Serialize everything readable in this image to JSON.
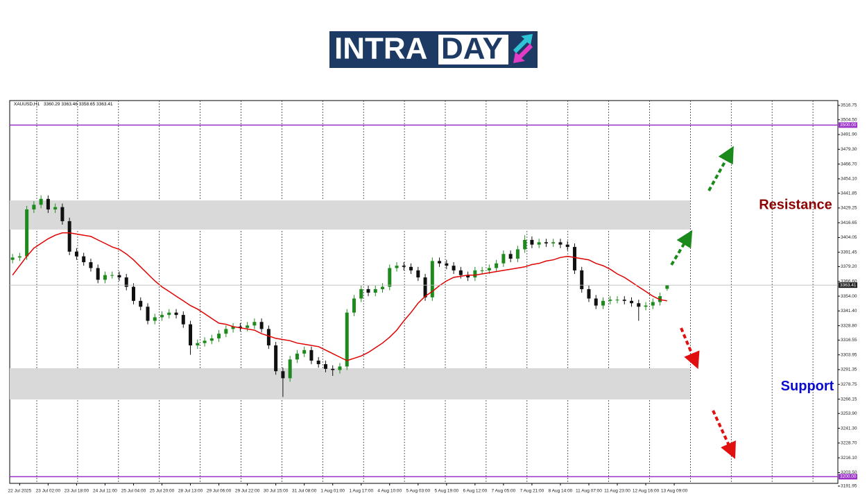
{
  "logo": {
    "first": "INTRA",
    "second": "DAY"
  },
  "chart_data": {
    "type": "candlestick",
    "symbol": "XAUUSD,H1",
    "up_color": "#1e8a1e",
    "down_color": "#111111",
    "open": [
      3385,
      3387,
      3388,
      3428,
      3432,
      3437,
      3428,
      3430,
      3418,
      3392,
      3388,
      3383,
      3378,
      3368,
      3372,
      3372,
      3370,
      3362,
      3350,
      3345,
      3333,
      3336,
      3338,
      3340,
      3338,
      3330,
      3312,
      3314,
      3316,
      3318,
      3322,
      3326,
      3328,
      3327,
      3329,
      3332,
      3326,
      3312,
      3290,
      3284,
      3300,
      3305,
      3308,
      3299,
      3296,
      3292,
      3291,
      3294,
      3340,
      3352,
      3360,
      3357,
      3360,
      3362,
      3378,
      3380,
      3379,
      3376,
      3370,
      3353,
      3384,
      3382,
      3380,
      3376,
      3372,
      3370,
      3376,
      3376,
      3378,
      3382,
      3390,
      3386,
      3394,
      3402,
      3398,
      3400,
      3399,
      3400,
      3398,
      3396,
      3376,
      3360,
      3352,
      3346,
      3350,
      3351,
      3351,
      3350,
      3348,
      3345,
      3346,
      3349,
      3360.29
    ],
    "high": [
      3390,
      3391,
      3431,
      3435,
      3440,
      3440,
      3433,
      3433,
      3421,
      3395,
      3391,
      3386,
      3381,
      3375,
      3375,
      3375,
      3373,
      3365,
      3353,
      3348,
      3339,
      3341,
      3343,
      3343,
      3341,
      3333,
      3317,
      3319,
      3321,
      3325,
      3329,
      3331,
      3331,
      3332,
      3335,
      3335,
      3329,
      3315,
      3293,
      3303,
      3308,
      3311,
      3311,
      3302,
      3299,
      3295,
      3297,
      3343,
      3355,
      3363,
      3363,
      3363,
      3365,
      3381,
      3383,
      3383,
      3382,
      3379,
      3373,
      3387,
      3387,
      3385,
      3383,
      3379,
      3375,
      3379,
      3379,
      3381,
      3385,
      3393,
      3393,
      3397,
      3406,
      3405,
      3403,
      3403,
      3403,
      3403,
      3401,
      3399,
      3379,
      3363,
      3355,
      3353,
      3354,
      3354,
      3354,
      3353,
      3351,
      3349,
      3352,
      3357,
      3363.46
    ],
    "low": [
      3382,
      3384,
      3385,
      3425,
      3429,
      3425,
      3425,
      3415,
      3389,
      3385,
      3380,
      3375,
      3365,
      3365,
      3369,
      3367,
      3359,
      3347,
      3342,
      3330,
      3330,
      3333,
      3335,
      3335,
      3327,
      3304,
      3309,
      3311,
      3313,
      3315,
      3319,
      3323,
      3324,
      3324,
      3326,
      3323,
      3309,
      3287,
      3268,
      3281,
      3297,
      3302,
      3296,
      3293,
      3289,
      3286,
      3288,
      3291,
      3337,
      3349,
      3354,
      3354,
      3357,
      3359,
      3375,
      3376,
      3373,
      3367,
      3350,
      3350,
      3379,
      3377,
      3373,
      3369,
      3367,
      3367,
      3373,
      3373,
      3375,
      3379,
      3383,
      3383,
      3391,
      3395,
      3395,
      3396,
      3396,
      3395,
      3393,
      3373,
      3357,
      3349,
      3343,
      3343,
      3347,
      3348,
      3347,
      3345,
      3333,
      3342,
      3343,
      3346,
      3358.65
    ],
    "close": [
      3387,
      3388,
      3428,
      3432,
      3437,
      3428,
      3430,
      3418,
      3392,
      3388,
      3383,
      3378,
      3368,
      3372,
      3372,
      3370,
      3362,
      3350,
      3345,
      3333,
      3336,
      3338,
      3340,
      3338,
      3330,
      3312,
      3314,
      3316,
      3318,
      3322,
      3326,
      3328,
      3327,
      3329,
      3332,
      3326,
      3312,
      3290,
      3284,
      3300,
      3305,
      3308,
      3299,
      3296,
      3292,
      3291,
      3294,
      3340,
      3352,
      3360,
      3357,
      3360,
      3362,
      3378,
      3380,
      3379,
      3376,
      3370,
      3353,
      3384,
      3382,
      3380,
      3376,
      3372,
      3370,
      3376,
      3376,
      3378,
      3382,
      3390,
      3386,
      3394,
      3402,
      3398,
      3400,
      3399,
      3400,
      3398,
      3396,
      3376,
      3360,
      3352,
      3346,
      3350,
      3351,
      3351,
      3350,
      3348,
      3345,
      3346,
      3349,
      3354,
      3363.41
    ],
    "ma": {
      "color": "#e00000",
      "values": [
        3372,
        3380,
        3388,
        3395,
        3399,
        3403,
        3406,
        3408,
        3408,
        3407,
        3406,
        3405,
        3402,
        3399,
        3396,
        3394,
        3390,
        3385,
        3379,
        3373,
        3367,
        3362,
        3358,
        3354,
        3350,
        3346,
        3343,
        3339,
        3335,
        3331,
        3330,
        3328,
        3327,
        3326,
        3325,
        3322,
        3320,
        3318,
        3317,
        3316,
        3314,
        3313,
        3312,
        3311,
        3308,
        3305,
        3302,
        3299,
        3301,
        3303,
        3306,
        3310,
        3314,
        3319,
        3325,
        3333,
        3340,
        3348,
        3354,
        3358,
        3363,
        3367,
        3370,
        3371,
        3372,
        3372,
        3373,
        3374,
        3375,
        3376,
        3377,
        3378,
        3379,
        3381,
        3382,
        3384,
        3385,
        3387,
        3388,
        3387,
        3386,
        3385,
        3382,
        3380,
        3377,
        3373,
        3370,
        3366,
        3362,
        3358,
        3354,
        3351,
        3350
      ]
    },
    "xlim": [
      -0.4,
      116
    ],
    "xticks": [
      {
        "value": 1,
        "label": "22 Jul 2025"
      },
      {
        "value": 5,
        "label": "23 Jul 02:00"
      },
      {
        "value": 9,
        "label": "23 Jul 18:00"
      },
      {
        "value": 13,
        "label": "24 Jul 11:00"
      },
      {
        "value": 17,
        "label": "25 Jul 04:00"
      },
      {
        "value": 21,
        "label": "25 Jul 20:00"
      },
      {
        "value": 25,
        "label": "28 Jul 13:00"
      },
      {
        "value": 29,
        "label": "29 Jul 06:00"
      },
      {
        "value": 33,
        "label": "29 Jul 22:00"
      },
      {
        "value": 37,
        "label": "30 Jul 15:00"
      },
      {
        "value": 41,
        "label": "31 Jul 08:00"
      },
      {
        "value": 45,
        "label": "1 Aug 01:00"
      },
      {
        "value": 49,
        "label": "1 Aug 17:00"
      },
      {
        "value": 53,
        "label": "4 Aug 10:00"
      },
      {
        "value": 57,
        "label": "5 Aug 03:00"
      },
      {
        "value": 61,
        "label": "5 Aug 19:00"
      },
      {
        "value": 65,
        "label": "6 Aug 12:00"
      },
      {
        "value": 69,
        "label": "7 Aug 05:00"
      },
      {
        "value": 73,
        "label": "7 Aug 21:00"
      },
      {
        "value": 77,
        "label": "8 Aug 14:00"
      },
      {
        "value": 81,
        "label": "11 Aug 07:00"
      },
      {
        "value": 85,
        "label": "11 Aug 23:00"
      },
      {
        "value": 89,
        "label": "12 Aug 16:00"
      },
      {
        "value": 93,
        "label": "13 Aug 09:00"
      }
    ],
    "ylim": [
      3194.3,
      3520.9
    ],
    "yticks": [
      {
        "value": 3516.75,
        "label": "3516.75"
      },
      {
        "value": 3504.5,
        "label": "3504.50"
      },
      {
        "value": 3491.9,
        "label": "3491.90"
      },
      {
        "value": 3479.3,
        "label": "3479.30"
      },
      {
        "value": 3466.7,
        "label": "3466.70"
      },
      {
        "value": 3454.1,
        "label": "3454.10"
      },
      {
        "value": 3441.85,
        "label": "3441.85"
      },
      {
        "value": 3429.25,
        "label": "3429.25"
      },
      {
        "value": 3416.65,
        "label": "3416.65"
      },
      {
        "value": 3404.05,
        "label": "3404.05"
      },
      {
        "value": 3391.45,
        "label": "3391.45"
      },
      {
        "value": 3379.2,
        "label": "3379.20"
      },
      {
        "value": 3366.6,
        "label": "3366.60"
      },
      {
        "value": 3354,
        "label": "3354.00"
      },
      {
        "value": 3341.4,
        "label": "3341.40"
      },
      {
        "value": 3328.8,
        "label": "3328.80"
      },
      {
        "value": 3316.55,
        "label": "3316.55"
      },
      {
        "value": 3303.95,
        "label": "3303.95"
      },
      {
        "value": 3291.35,
        "label": "3291.35"
      },
      {
        "value": 3278.75,
        "label": "3278.75"
      },
      {
        "value": 3266.15,
        "label": "3266.15"
      },
      {
        "value": 3253.9,
        "label": "3253.90"
      },
      {
        "value": 3241.3,
        "label": "3241.30"
      },
      {
        "value": 3228.7,
        "label": "3228.70"
      },
      {
        "value": 3216.1,
        "label": "3216.10"
      },
      {
        "value": 3203.5,
        "label": "3203.50"
      },
      {
        "value": 3191.95,
        "label": "3191.95"
      }
    ],
    "levels": [
      {
        "value": 3500,
        "label": "3500.00",
        "color": "#9b30c8"
      },
      {
        "value": 3200,
        "label": "3200.00",
        "color": "#9b30c8"
      }
    ],
    "zones": [
      {
        "label": "Resistance",
        "color": "#8b0000",
        "range": [
          3410.8,
          3435.7
        ]
      },
      {
        "label": "Support",
        "color": "#0a0ad0",
        "range": [
          3265.9,
          3292.5
        ]
      }
    ]
  }
}
